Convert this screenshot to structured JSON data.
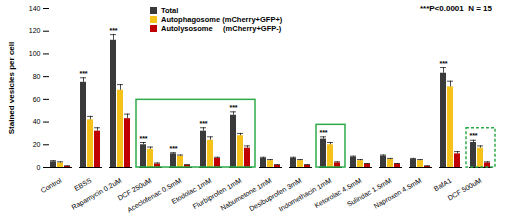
{
  "chart_data": {
    "type": "bar",
    "y_label": "Stained vesicles per cell",
    "annotation": "***P<0.0001  N = 15",
    "categories": [
      "Control",
      "EBSS",
      "Rapamycin 0.2uM",
      "DCF 250uM",
      "Aceclofenac 0.5mM",
      "Etodolac 1mM",
      "Flurbiprofen 1mM",
      "Nabumetone 1mM",
      "Desibuprofen 3mM",
      "Indomethacin 1mM",
      "Ketorolac 4.5mM",
      "Sulindac 1.5mM",
      "Naproxen 4.5mM",
      "BafA1",
      "DCF 500uM"
    ],
    "series": [
      {
        "name": "Total",
        "color": "#3a3a3a",
        "values": [
          5,
          75,
          112,
          20,
          12,
          32,
          46,
          8,
          8,
          25,
          9,
          10,
          7,
          83,
          22
        ],
        "errors": [
          1,
          4,
          5,
          2,
          1,
          3,
          3,
          1,
          1,
          2,
          1,
          1,
          1,
          5,
          2
        ]
      },
      {
        "name": "Autophagosome (mCherry+GFP+)",
        "color": "#f5c21b",
        "values": [
          4,
          42,
          68,
          16,
          10,
          24,
          28,
          6,
          6,
          20,
          6,
          7,
          6,
          71,
          17
        ],
        "errors": [
          1,
          3,
          5,
          2,
          1,
          3,
          2,
          1,
          1,
          2,
          1,
          1,
          1,
          5,
          2
        ]
      },
      {
        "name": "Autolysosome     (mCherry+GFP-)",
        "color": "#c00000",
        "values": [
          1,
          32,
          43,
          3,
          2,
          8,
          17,
          2,
          2,
          4,
          3,
          3,
          1,
          12,
          4
        ],
        "errors": [
          0.5,
          3,
          4,
          1,
          0.5,
          1,
          2,
          0.5,
          0.5,
          1,
          0.5,
          0.5,
          0.5,
          2,
          1
        ]
      }
    ],
    "significance": [
      null,
      "***",
      "***",
      "***",
      "***",
      "***",
      "***",
      null,
      null,
      "***",
      null,
      null,
      null,
      "***",
      "***"
    ],
    "ylim": [
      0,
      140
    ],
    "yticks": [
      0,
      20,
      40,
      60,
      80,
      100,
      120,
      140
    ],
    "grid": false,
    "legend": "top-left"
  }
}
